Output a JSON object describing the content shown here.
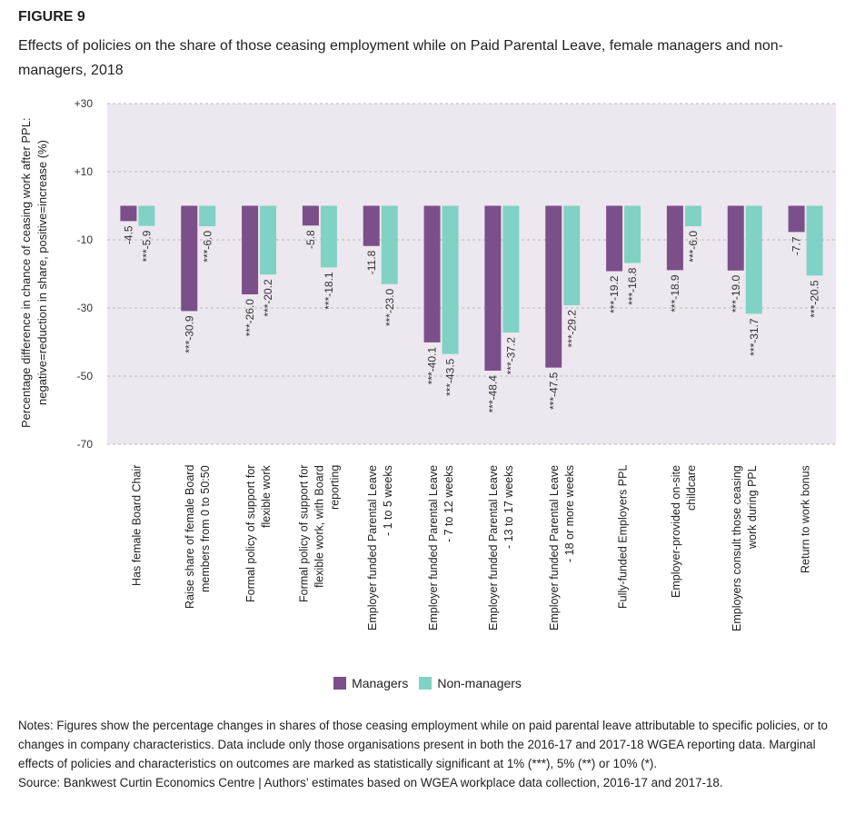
{
  "figure_label": "FIGURE 9",
  "chart_data": {
    "type": "bar",
    "title": "Effects of policies on the share of those ceasing employment while on Paid Parental Leave, female managers and non-managers, 2018",
    "y_label": "Percentage difference in chance of ceasing work after PPL:\nnegative=reduction in share, positive=increase (%)",
    "categories": [
      "Has female Board Chair",
      "Raise share of female Board\nmembers from 0 to 50:50",
      "Formal policy of support for\nflexible work",
      "Formal policy of support for\nflexible work, with Board\nreporting",
      "Employer funded Parental Leave\n- 1 to 5 weeks",
      "Employer funded Parental Leave\n- 7 to 12 weeks",
      "Employer funded Parental Leave\n- 13 to 17 weeks",
      "Employer funded Parental Leave\n- 18 or more weeks",
      "Fully-funded Employers PPL",
      "Employer-provided on-site\nchildcare",
      "Employers consult those ceasing\nwork during PPL",
      "Return to work bonus"
    ],
    "series": [
      {
        "name": "Managers",
        "color": "#7b4f8a",
        "values": [
          -4.5,
          -30.9,
          -26.0,
          -5.8,
          -11.8,
          -40.1,
          -48.4,
          -47.5,
          -19.2,
          -18.9,
          -19.0,
          -7.7
        ],
        "value_labels": [
          "-4.5",
          "***-30.9",
          "***-26.0",
          "-5.8",
          "-11.8",
          "***-40.1",
          "***-48.4",
          "***-47.5",
          "***-19.2",
          "***-18.9",
          "***-19.0",
          "-7.7"
        ]
      },
      {
        "name": "Non-managers",
        "color": "#80d2c4",
        "values": [
          -5.9,
          -6.0,
          -20.2,
          -18.1,
          -23.0,
          -43.5,
          -37.2,
          -29.2,
          -16.8,
          -6.0,
          -31.7,
          -20.5
        ],
        "value_labels": [
          "***-5.9",
          "***-6.0",
          "***-20.2",
          "***-18.1",
          "***-23.0",
          "***-43.5",
          "***-37.2",
          "***-29.2",
          "***-16.8",
          "***-6.0",
          "***-31.7",
          "***-20.5"
        ]
      }
    ],
    "ylim": [
      -70,
      30
    ],
    "yticks": [
      {
        "value": 30,
        "label": "+30"
      },
      {
        "value": 10,
        "label": "+10"
      },
      -10,
      -30,
      -50,
      -70
    ],
    "grid": true
  },
  "notes": "Notes: Figures show the percentage changes in shares of those ceasing employment while on paid parental leave attributable to specific policies, or to changes in company characteristics. Data include only those organisations present in both the 2016-17 and 2017-18 WGEA reporting data. Marginal effects of policies and characteristics on outcomes are marked as statistically significant at 1% (***), 5% (**) or 10% (*).",
  "source": "Source: Bankwest Curtin Economics Centre | Authors’ estimates based on WGEA workplace data collection, 2016-17 and 2017-18."
}
